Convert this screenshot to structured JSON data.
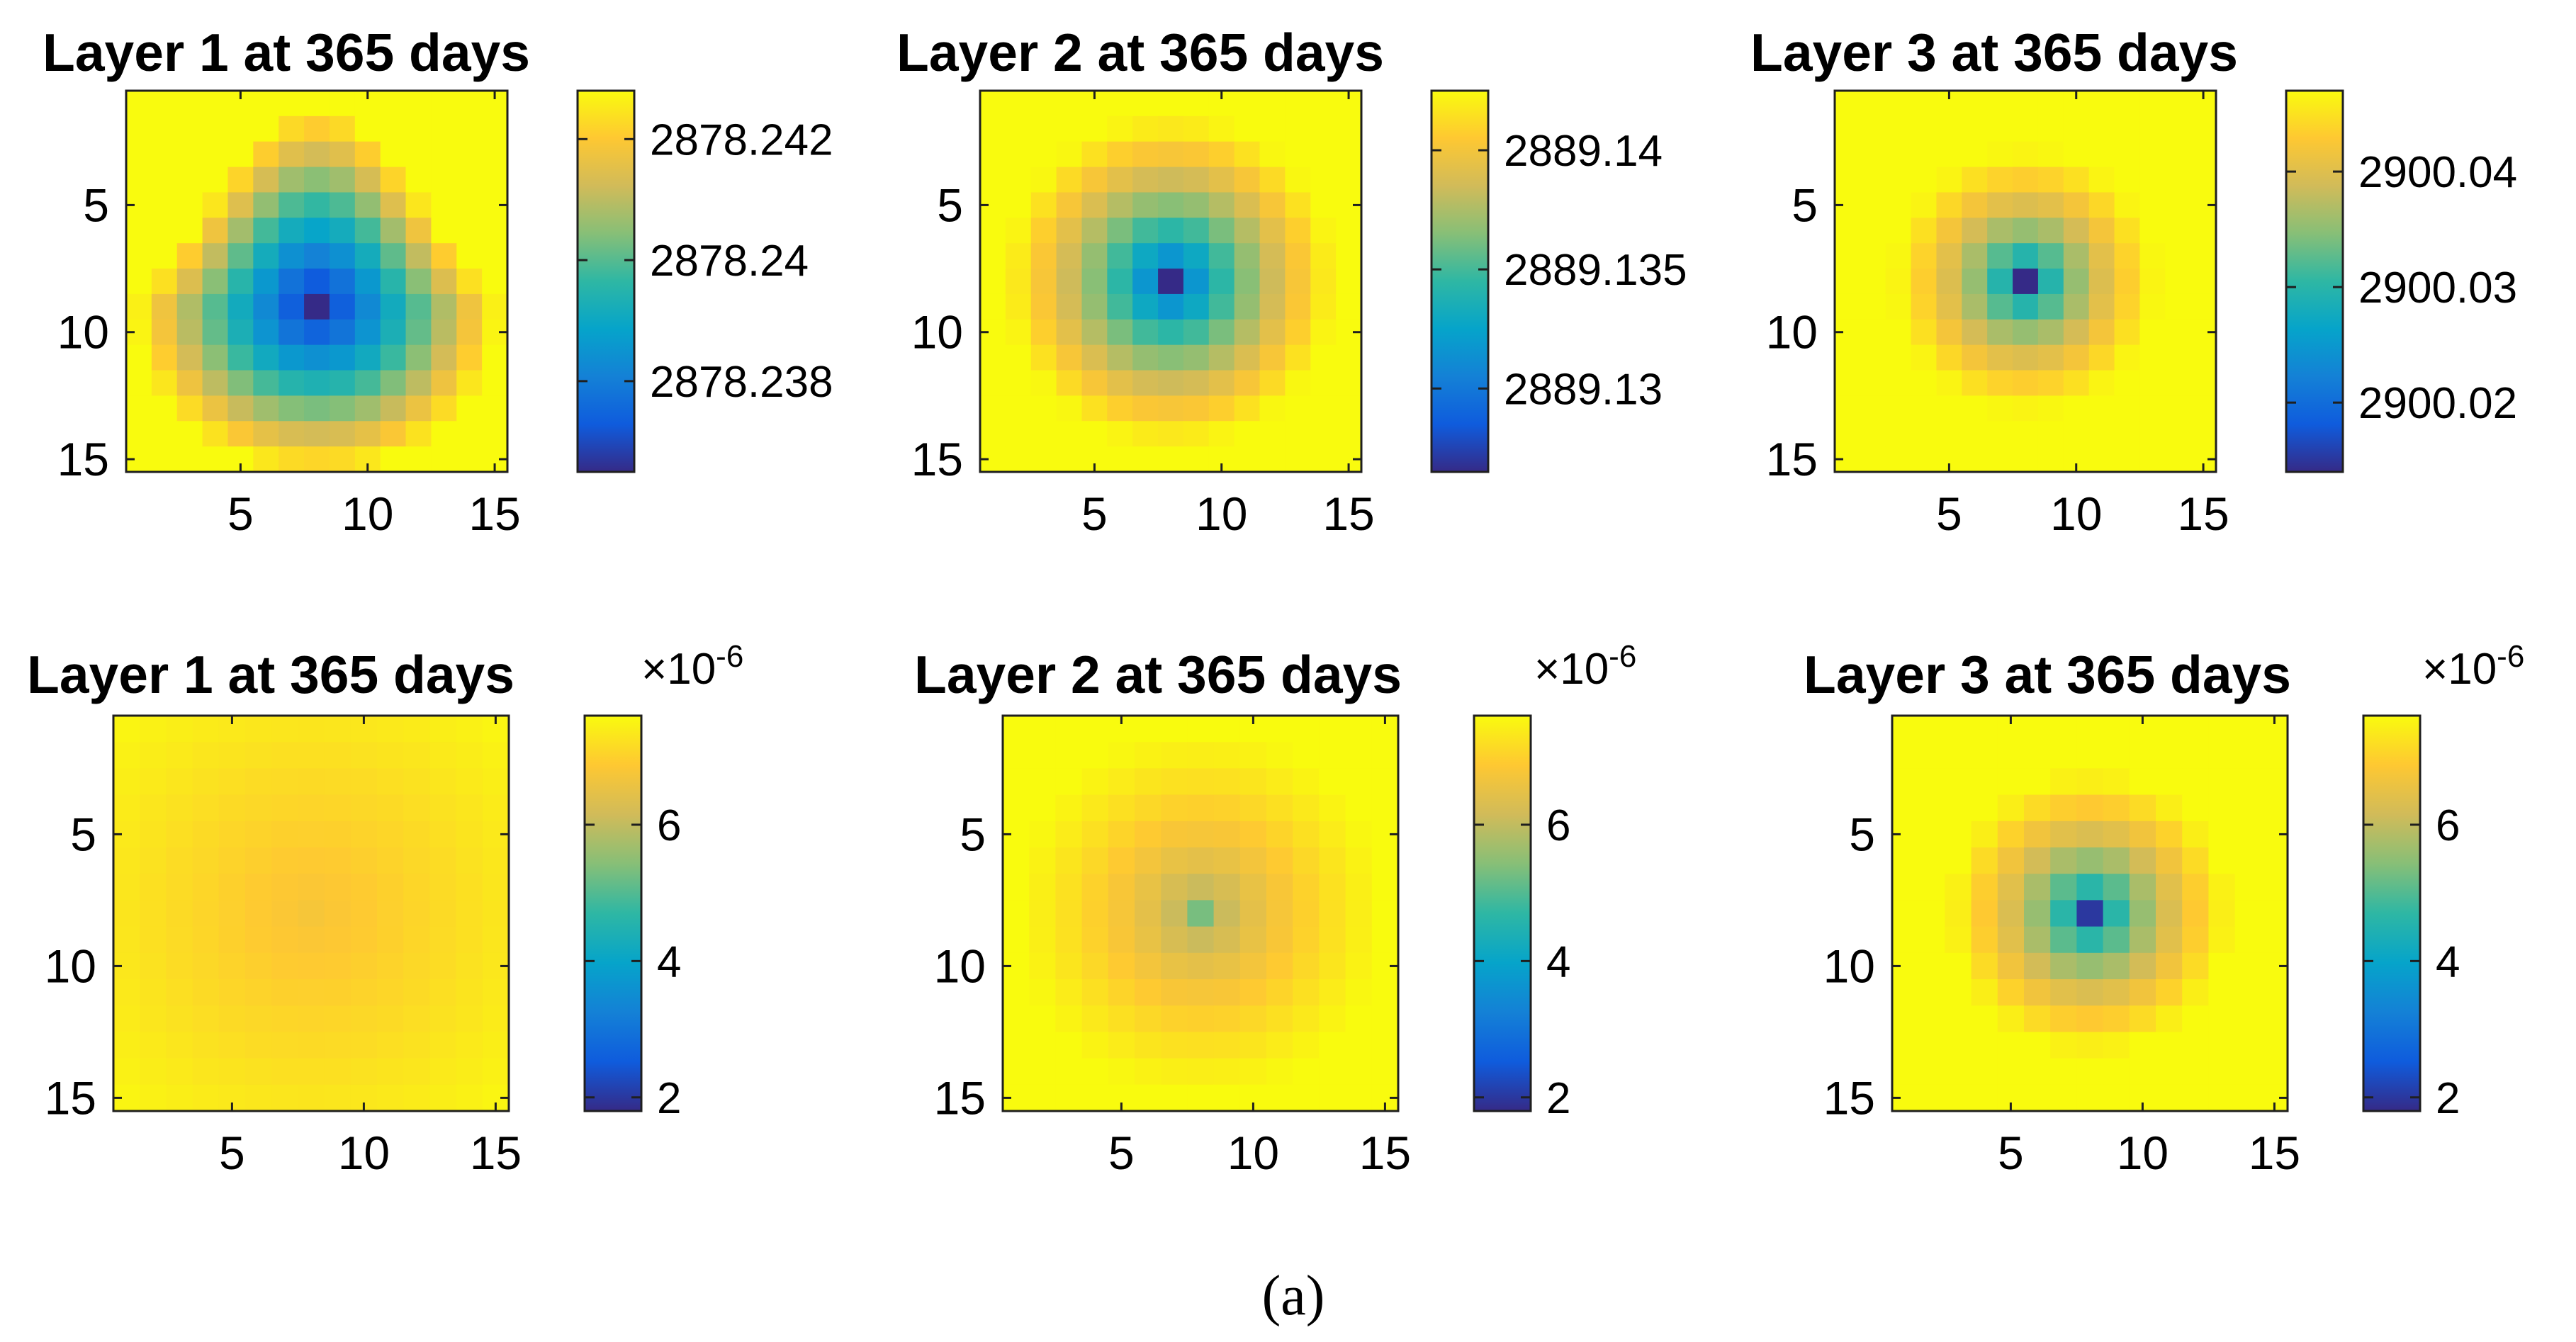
{
  "figure": {
    "caption": "(a)"
  },
  "chart_data": [
    {
      "type": "heatmap",
      "title": "Layer 1 at 365 days",
      "grid": [
        15,
        15
      ],
      "axis_ticks": [
        5,
        10,
        15
      ],
      "x_tick_labels": [
        "5",
        "10",
        "15"
      ],
      "y_tick_labels": [
        "5",
        "10",
        "15"
      ],
      "colormap": "parula",
      "colorbar": {
        "range": [
          2878.2365,
          2878.2428
        ],
        "ticks": [
          2878.238,
          2878.24,
          2878.242
        ],
        "tick_labels": [
          "2878.238",
          "2878.24",
          "2878.242"
        ],
        "multiplier": ""
      },
      "field": {
        "center": [
          8,
          9
        ],
        "shape": "drop",
        "rx": 7.2,
        "ry": 6.6,
        "up_stretch": 1.2,
        "exponent": 1.0
      }
    },
    {
      "type": "heatmap",
      "title": "Layer 2 at 365 days",
      "grid": [
        15,
        15
      ],
      "axis_ticks": [
        5,
        10,
        15
      ],
      "x_tick_labels": [
        "5",
        "10",
        "15"
      ],
      "y_tick_labels": [
        "5",
        "10",
        "15"
      ],
      "colormap": "parula",
      "colorbar": {
        "range": [
          2889.1265,
          2889.1425
        ],
        "ticks": [
          2889.13,
          2889.135,
          2889.14
        ],
        "tick_labels": [
          "2889.13",
          "2889.135",
          "2889.14"
        ],
        "multiplier": ""
      },
      "field": {
        "center": [
          8,
          8
        ],
        "shape": "radial",
        "rx": 6.5,
        "ry": 6.5,
        "exponent": 0.6
      }
    },
    {
      "type": "heatmap",
      "title": "Layer 3 at 365 days",
      "grid": [
        15,
        15
      ],
      "axis_ticks": [
        5,
        10,
        15
      ],
      "x_tick_labels": [
        "5",
        "10",
        "15"
      ],
      "y_tick_labels": [
        "5",
        "10",
        "15"
      ],
      "colormap": "parula",
      "colorbar": {
        "range": [
          2900.014,
          2900.047
        ],
        "ticks": [
          2900.02,
          2900.03,
          2900.04
        ],
        "tick_labels": [
          "2900.02",
          "2900.03",
          "2900.04"
        ],
        "multiplier": ""
      },
      "field": {
        "center": [
          8,
          8
        ],
        "shape": "radial",
        "rx": 5.2,
        "ry": 5.2,
        "exponent": 0.45
      }
    },
    {
      "type": "heatmap",
      "title": "Layer 1 at 365 days",
      "grid": [
        15,
        15
      ],
      "axis_ticks": [
        5,
        10,
        15
      ],
      "x_tick_labels": [
        "5",
        "10",
        "15"
      ],
      "y_tick_labels": [
        "5",
        "10",
        "15"
      ],
      "colormap": "parula",
      "colorbar": {
        "range": [
          1.8,
          7.6
        ],
        "ticks": [
          2,
          4,
          6
        ],
        "tick_labels": [
          "2",
          "4",
          "6"
        ],
        "multiplier": "×10-6",
        "multiplier_base": "×10",
        "multiplier_exp": "-6"
      },
      "field": {
        "center": [
          8,
          8
        ],
        "shape": "radial",
        "rx": 11,
        "ry": 11,
        "exponent": 1.0,
        "min_value": 6.75
      }
    },
    {
      "type": "heatmap",
      "title": "Layer 2 at 365 days",
      "grid": [
        15,
        15
      ],
      "axis_ticks": [
        5,
        10,
        15
      ],
      "x_tick_labels": [
        "5",
        "10",
        "15"
      ],
      "y_tick_labels": [
        "5",
        "10",
        "15"
      ],
      "colormap": "parula",
      "colorbar": {
        "range": [
          1.8,
          7.6
        ],
        "ticks": [
          2,
          4,
          6
        ],
        "tick_labels": [
          "2",
          "4",
          "6"
        ],
        "multiplier": "×10-6",
        "multiplier_base": "×10",
        "multiplier_exp": "-6"
      },
      "field": {
        "center": [
          8,
          8
        ],
        "shape": "radial",
        "rx": 7,
        "ry": 7,
        "exponent": 0.55,
        "min_value": 5.3
      }
    },
    {
      "type": "heatmap",
      "title": "Layer 3 at 365 days",
      "grid": [
        15,
        15
      ],
      "axis_ticks": [
        5,
        10,
        15
      ],
      "x_tick_labels": [
        "5",
        "10",
        "15"
      ],
      "y_tick_labels": [
        "5",
        "10",
        "15"
      ],
      "colormap": "parula",
      "colorbar": {
        "range": [
          1.8,
          7.6
        ],
        "ticks": [
          2,
          4,
          6
        ],
        "tick_labels": [
          "2",
          "4",
          "6"
        ],
        "multiplier": "×10-6",
        "multiplier_base": "×10",
        "multiplier_exp": "-6"
      },
      "field": {
        "center": [
          8,
          8
        ],
        "shape": "radial",
        "rx": 5.4,
        "ry": 5.4,
        "exponent": 0.45,
        "min_value": 2.0
      }
    }
  ]
}
